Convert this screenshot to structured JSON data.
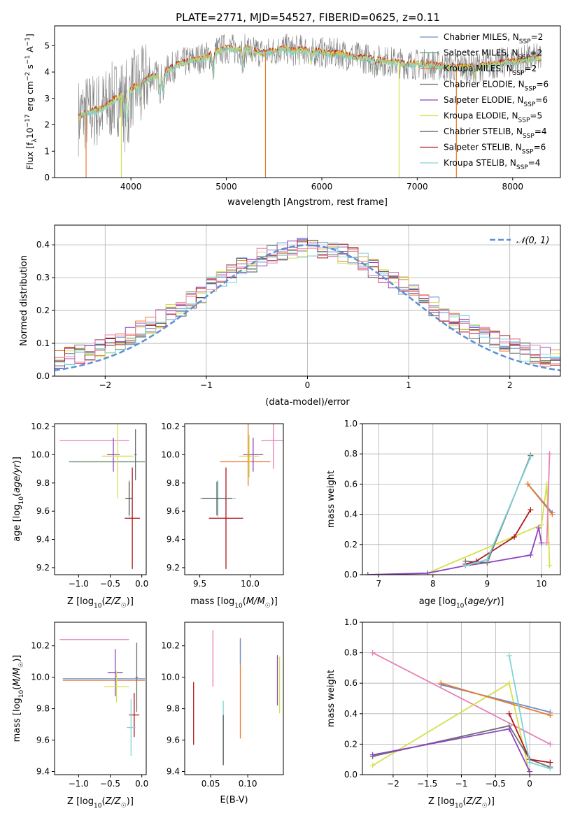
{
  "figure": {
    "title": "PLATE=2771, MJD=54527, FIBERID=0625, z=0.11"
  },
  "colors": {
    "Chabrier MILES": "#6a8fd0",
    "Salpeter MILES": "#5a9a8a",
    "Kroupa MILES": "#e87a2a",
    "Chabrier ELODIE": "#707070",
    "Salpeter ELODIE": "#8e44c0",
    "Kroupa ELODIE": "#d4e04a",
    "Chabrier STELIB": "#555555",
    "Salpeter STELIB": "#b0161b",
    "Kroupa STELIB": "#7fd4d8",
    "pink": "#e87fb8",
    "normal_line": "#5b8fd6"
  },
  "chart_data": [
    {
      "id": "spectrum",
      "type": "line",
      "xlabel": "wavelength [Angstrom, rest frame]",
      "ylabel": "Flux [fλ10⁻¹⁷ erg cm⁻² s⁻¹ A⁻¹]",
      "xlim": [
        3200,
        8500
      ],
      "ylim": [
        0,
        5.75
      ],
      "xticks": [
        4000,
        5000,
        6000,
        7000,
        8000
      ],
      "yticks": [
        0,
        1,
        2,
        3,
        4,
        5
      ],
      "legend_position": "top-right",
      "legend": [
        "Chabrier MILES, N_SSP=2",
        "Salpeter MILES, N_SSP=2",
        "Kroupa MILES, N_SSP=2",
        "Chabrier ELODIE, N_SSP=6",
        "Salpeter ELODIE, N_SSP=6",
        "Kroupa ELODIE, N_SSP=5",
        "Chabrier STELIB, N_SSP=4",
        "Salpeter STELIB, N_SSP=6",
        "Kroupa STELIB, N_SSP=4"
      ],
      "legend_items": [
        {
          "prefix": "Chabrier MILES, N",
          "sub": "SSP",
          "suffix": "=2",
          "color": "#6a8fd0"
        },
        {
          "prefix": "Salpeter MILES, N",
          "sub": "SSP",
          "suffix": "=2",
          "color": "#5a9a8a"
        },
        {
          "prefix": "Kroupa MILES, N",
          "sub": "SSP",
          "suffix": "=2",
          "color": "#e87a2a"
        },
        {
          "prefix": "Chabrier ELODIE, N",
          "sub": "SSP",
          "suffix": "=6",
          "color": "#707070"
        },
        {
          "prefix": "Salpeter ELODIE, N",
          "sub": "SSP",
          "suffix": "=6",
          "color": "#8e44c0"
        },
        {
          "prefix": "Kroupa ELODIE, N",
          "sub": "SSP",
          "suffix": "=5",
          "color": "#d4e04a"
        },
        {
          "prefix": "Chabrier STELIB, N",
          "sub": "SSP",
          "suffix": "=4",
          "color": "#555555"
        },
        {
          "prefix": "Salpeter STELIB, N",
          "sub": "SSP",
          "suffix": "=6",
          "color": "#b0161b"
        },
        {
          "prefix": "Kroupa STELIB, N",
          "sub": "SSP",
          "suffix": "=4",
          "color": "#7fd4d8"
        }
      ],
      "continuum": [
        [
          3450,
          2.3
        ],
        [
          3550,
          2.5
        ],
        [
          3700,
          2.6
        ],
        [
          3800,
          2.9
        ],
        [
          3900,
          3.1
        ],
        [
          4000,
          3.3
        ],
        [
          4100,
          3.6
        ],
        [
          4200,
          3.8
        ],
        [
          4300,
          3.9
        ],
        [
          4400,
          4.1
        ],
        [
          4500,
          4.3
        ],
        [
          4600,
          4.4
        ],
        [
          4700,
          4.5
        ],
        [
          4800,
          4.6
        ],
        [
          4900,
          4.8
        ],
        [
          5000,
          4.9
        ],
        [
          5100,
          4.85
        ],
        [
          5200,
          4.9
        ],
        [
          5300,
          4.8
        ],
        [
          5400,
          4.7
        ],
        [
          5500,
          4.8
        ],
        [
          5600,
          4.9
        ],
        [
          5700,
          4.8
        ],
        [
          5800,
          4.85
        ],
        [
          5900,
          4.8
        ],
        [
          6000,
          4.75
        ],
        [
          6100,
          4.7
        ],
        [
          6200,
          4.7
        ],
        [
          6300,
          4.6
        ],
        [
          6400,
          4.55
        ],
        [
          6500,
          4.5
        ],
        [
          6600,
          4.45
        ],
        [
          6700,
          4.4
        ],
        [
          6800,
          4.35
        ],
        [
          6900,
          4.3
        ],
        [
          7000,
          4.3
        ],
        [
          7100,
          4.3
        ],
        [
          7200,
          4.25
        ],
        [
          7300,
          4.2
        ],
        [
          7400,
          4.2
        ],
        [
          7500,
          4.2
        ],
        [
          7600,
          4.2
        ],
        [
          7700,
          4.25
        ],
        [
          7800,
          4.3
        ],
        [
          7900,
          4.35
        ],
        [
          8000,
          4.4
        ],
        [
          8100,
          4.45
        ],
        [
          8200,
          4.5
        ],
        [
          8300,
          4.5
        ]
      ],
      "absorption_lines": [
        [
          3934,
          2.3
        ],
        [
          3969,
          2.2
        ],
        [
          4102,
          3.0
        ],
        [
          4304,
          3.3
        ],
        [
          4341,
          3.2
        ],
        [
          4861,
          4.0
        ],
        [
          5175,
          4.2
        ],
        [
          5270,
          4.5
        ],
        [
          5890,
          4.4
        ],
        [
          6563,
          4.2
        ],
        [
          7600,
          3.9
        ]
      ],
      "model_drops": [
        {
          "x": 3530,
          "color": "#e87a2a"
        },
        {
          "x": 3900,
          "color": "#d4e04a"
        },
        {
          "x": 5410,
          "color": "#e87a2a"
        },
        {
          "x": 6810,
          "color": "#d4e04a"
        },
        {
          "x": 7410,
          "color": "#e87a2a"
        }
      ]
    },
    {
      "id": "residuals",
      "type": "histogram",
      "xlabel": "(data-model)/error",
      "ylabel": "Normed distribution",
      "xlim": [
        -2.5,
        2.5
      ],
      "ylim": [
        0,
        0.46
      ],
      "xticks": [
        -2,
        -1,
        0,
        1,
        2
      ],
      "yticks": [
        0.0,
        0.1,
        0.2,
        0.3,
        0.4
      ],
      "grid": true,
      "legend_position": "top-right",
      "legend": [
        "𝒩(0, 1)"
      ],
      "bin_width": 0.1,
      "envelope": [
        0.025,
        0.03,
        0.035,
        0.04,
        0.045,
        0.05,
        0.058,
        0.066,
        0.075,
        0.085,
        0.098,
        0.11,
        0.125,
        0.14,
        0.158,
        0.175,
        0.195,
        0.21,
        0.23,
        0.25,
        0.265,
        0.28,
        0.295,
        0.31,
        0.325,
        0.335,
        0.345,
        0.352,
        0.358,
        0.362,
        0.365,
        0.368,
        0.37,
        0.372,
        0.373,
        0.372,
        0.37,
        0.365,
        0.358,
        0.35,
        0.34,
        0.33,
        0.318,
        0.305,
        0.29,
        0.275,
        0.26,
        0.245,
        0.23,
        0.215,
        0.2,
        0.185,
        0.17,
        0.155,
        0.14,
        0.125,
        0.11,
        0.098,
        0.086,
        0.075,
        0.065,
        0.056,
        0.048,
        0.042,
        0.037,
        0.033,
        0.03,
        0.028,
        0.027,
        0.026,
        0.025,
        0.025,
        0.025,
        0.025,
        0.025,
        0.025,
        0.025,
        0.025,
        0.025,
        0.025,
        0.025,
        0.025,
        0.025,
        0.025,
        0.025,
        0.025,
        0.025,
        0.025,
        0.025,
        0.025,
        0.025,
        0.025,
        0.025,
        0.025,
        0.025,
        0.025,
        0.025,
        0.025,
        0.025,
        0.025
      ],
      "series_colors": [
        "#6a8fd0",
        "#e87a2a",
        "#707070",
        "#8e44c0",
        "#d4e04a",
        "#555555",
        "#b0161b",
        "#7fd4d8",
        "#e87fb8"
      ]
    },
    {
      "id": "age-vs-Z",
      "type": "errorbar",
      "xlabel": "Z [log10(Z/Z☉)]",
      "ylabel": "age  [log10(age/yr)]",
      "xlim": [
        -1.38,
        0.07
      ],
      "ylim": [
        9.15,
        10.22
      ],
      "xticks": [
        -1.0,
        -0.5,
        0.0
      ],
      "yticks": [
        9.2,
        9.4,
        9.6,
        9.8,
        10.0,
        10.2
      ],
      "points": [
        {
          "x": -0.75,
          "xerr": 0.55,
          "y": 10.1,
          "yerr": 0.0,
          "color": "#e87fb8"
        },
        {
          "x": -0.55,
          "xerr": 0.6,
          "y": 9.95,
          "yerr": 0.0,
          "color": "#e87a2a"
        },
        {
          "x": -0.55,
          "xerr": 0.6,
          "y": 9.95,
          "yerr": 0.0,
          "color": "#5a9a8a"
        },
        {
          "x": -0.45,
          "xerr": 0.1,
          "y": 10.0,
          "yerr": 0.12,
          "color": "#8e44c0"
        },
        {
          "x": -0.38,
          "xerr": 0.25,
          "y": 9.99,
          "yerr": 0.3,
          "color": "#d4e04a"
        },
        {
          "x": -0.15,
          "xerr": 0.12,
          "y": 9.55,
          "yerr": 0.36,
          "color": "#b0161b"
        },
        {
          "x": -0.2,
          "xerr": 0.06,
          "y": 9.69,
          "yerr": 0.13,
          "color": "#7fd4d8"
        },
        {
          "x": -0.2,
          "xerr": 0.06,
          "y": 9.69,
          "yerr": 0.12,
          "color": "#555555"
        },
        {
          "x": -0.1,
          "xerr": 0.02,
          "y": 10.0,
          "yerr": 0.18,
          "color": "#707070"
        }
      ]
    },
    {
      "id": "age-vs-mass",
      "type": "errorbar",
      "xlabel": "mass [log10(M/M☉)]",
      "ylabel": "",
      "xlim": [
        9.35,
        10.33
      ],
      "ylim": [
        9.15,
        10.22
      ],
      "xticks": [
        9.5,
        10.0
      ],
      "yticks": [
        9.2,
        9.4,
        9.6,
        9.8,
        10.0,
        10.2
      ],
      "points": [
        {
          "x": 10.23,
          "xerr": 0.12,
          "y": 10.1,
          "yerr": 0.2,
          "color": "#e87fb8"
        },
        {
          "x": 9.95,
          "xerr": 0.25,
          "y": 9.95,
          "yerr": 0.0,
          "color": "#e87a2a"
        },
        {
          "x": 10.03,
          "xerr": 0.1,
          "y": 10.0,
          "yerr": 0.12,
          "color": "#8e44c0"
        },
        {
          "x": 9.99,
          "xerr": 0.1,
          "y": 9.99,
          "yerr": 0.15,
          "color": "#d4e04a"
        },
        {
          "x": 9.98,
          "xerr": 0.02,
          "y": 10.0,
          "yerr": 0.22,
          "color": "#e87a2a"
        },
        {
          "x": 9.76,
          "xerr": 0.17,
          "y": 9.55,
          "yerr": 0.36,
          "color": "#b0161b"
        },
        {
          "x": 9.68,
          "xerr": 0.18,
          "y": 9.69,
          "yerr": 0.13,
          "color": "#7fd4d8"
        },
        {
          "x": 9.67,
          "xerr": 0.15,
          "y": 9.69,
          "yerr": 0.12,
          "color": "#555555"
        }
      ]
    },
    {
      "id": "weight-vs-age",
      "type": "line",
      "xlabel": "age  [log10(age/yr)]",
      "ylabel": "mass weight",
      "xlim": [
        6.7,
        10.35
      ],
      "ylim": [
        0,
        1.0
      ],
      "xticks": [
        7,
        8,
        9,
        10
      ],
      "yticks": [
        0.0,
        0.2,
        0.4,
        0.6,
        0.8,
        1.0
      ],
      "grid": true,
      "series": [
        {
          "color": "#d4e04a",
          "x": [
            6.8,
            7.9,
            10.0,
            10.1,
            10.15
          ],
          "y": [
            0.0,
            0.01,
            0.33,
            0.6,
            0.06
          ]
        },
        {
          "color": "#8e44c0",
          "x": [
            6.8,
            7.9,
            8.6,
            9.0,
            9.8,
            9.95,
            10.0
          ],
          "y": [
            0.0,
            0.01,
            0.06,
            0.08,
            0.13,
            0.31,
            0.21
          ]
        },
        {
          "color": "#b0161b",
          "x": [
            8.6,
            8.8,
            9.5,
            9.8
          ],
          "y": [
            0.07,
            0.09,
            0.25,
            0.43
          ]
        },
        {
          "color": "#707070",
          "x": [
            8.6,
            9.0,
            9.8
          ],
          "y": [
            0.09,
            0.08,
            0.79
          ]
        },
        {
          "color": "#7fd4d8",
          "x": [
            8.6,
            9.0,
            9.8
          ],
          "y": [
            0.06,
            0.1,
            0.78
          ]
        },
        {
          "color": "#6a8fd0",
          "x": [
            9.75,
            10.2
          ],
          "y": [
            0.6,
            0.41
          ]
        },
        {
          "color": "#e87a2a",
          "x": [
            9.75,
            10.2
          ],
          "y": [
            0.6,
            0.4
          ]
        },
        {
          "color": "#e87fb8",
          "x": [
            10.1,
            10.15
          ],
          "y": [
            0.21,
            0.8
          ]
        }
      ]
    },
    {
      "id": "mass-vs-Z",
      "type": "errorbar",
      "xlabel": "Z [log10(Z/Z☉)]",
      "ylabel": "mass [log10(M/M☉)]",
      "xlim": [
        -1.38,
        0.07
      ],
      "ylim": [
        9.38,
        10.35
      ],
      "xticks": [
        -1.0,
        -0.5,
        0.0
      ],
      "yticks": [
        9.4,
        9.6,
        9.8,
        10.0,
        10.2
      ],
      "points": [
        {
          "x": -0.75,
          "xerr": 0.55,
          "y": 10.24,
          "yerr": 0.0,
          "color": "#e87fb8"
        },
        {
          "x": -0.6,
          "xerr": 0.65,
          "y": 9.99,
          "yerr": 0.0,
          "color": "#6a8fd0"
        },
        {
          "x": -0.6,
          "xerr": 0.65,
          "y": 9.98,
          "yerr": 0.0,
          "color": "#e87a2a"
        },
        {
          "x": -0.42,
          "xerr": 0.12,
          "y": 10.03,
          "yerr": 0.15,
          "color": "#8e44c0"
        },
        {
          "x": -0.4,
          "xerr": 0.2,
          "y": 9.94,
          "yerr": 0.1,
          "color": "#d4e04a"
        },
        {
          "x": -0.12,
          "xerr": 0.08,
          "y": 9.76,
          "yerr": 0.14,
          "color": "#b0161b"
        },
        {
          "x": -0.17,
          "xerr": 0.07,
          "y": 9.68,
          "yerr": 0.18,
          "color": "#7fd4d8"
        },
        {
          "x": -0.08,
          "xerr": 0.02,
          "y": 10.0,
          "yerr": 0.22,
          "color": "#707070"
        }
      ]
    },
    {
      "id": "mass-vs-EBV",
      "type": "errorbar",
      "xlabel": "E(B-V)",
      "ylabel": "",
      "xlim": [
        0.015,
        0.148
      ],
      "ylim": [
        9.38,
        10.35
      ],
      "xticks": [
        0.05,
        0.1
      ],
      "yticks": [
        9.4,
        9.6,
        9.8,
        10.0,
        10.2
      ],
      "points": [
        {
          "x": 0.027,
          "xerr": 0.0,
          "y": 9.77,
          "yerr": 0.2,
          "color": "#b0161b"
        },
        {
          "x": 0.053,
          "xerr": 0.0,
          "y": 10.12,
          "yerr": 0.18,
          "color": "#e87fb8"
        },
        {
          "x": 0.067,
          "xerr": 0.0,
          "y": 9.65,
          "yerr": 0.2,
          "color": "#7fd4d8"
        },
        {
          "x": 0.067,
          "xerr": 0.0,
          "y": 9.6,
          "yerr": 0.16,
          "color": "#555555"
        },
        {
          "x": 0.09,
          "xerr": 0.0,
          "y": 9.93,
          "yerr": 0.32,
          "color": "#e87a2a"
        },
        {
          "x": 0.09,
          "xerr": 0.0,
          "y": 10.16,
          "yerr": 0.08,
          "color": "#6a8fd0"
        },
        {
          "x": 0.14,
          "xerr": 0.0,
          "y": 9.98,
          "yerr": 0.16,
          "color": "#8e44c0"
        },
        {
          "x": 0.143,
          "xerr": 0.0,
          "y": 9.95,
          "yerr": 0.18,
          "color": "#d4e04a"
        }
      ]
    },
    {
      "id": "weight-vs-Z",
      "type": "line",
      "xlabel": "Z [log10(Z/Z☉)]",
      "ylabel": "mass weight",
      "xlim": [
        -2.45,
        0.45
      ],
      "ylim": [
        0,
        1.0
      ],
      "xticks": [
        -2.0,
        -1.5,
        -1.0,
        -0.5,
        0.0
      ],
      "yticks": [
        0.0,
        0.2,
        0.4,
        0.6,
        0.8,
        1.0
      ],
      "grid": true,
      "series": [
        {
          "color": "#e87fb8",
          "x": [
            -2.3,
            0.3
          ],
          "y": [
            0.8,
            0.2
          ]
        },
        {
          "color": "#d4e04a",
          "x": [
            -2.3,
            -0.3,
            0.0
          ],
          "y": [
            0.06,
            0.6,
            0.0
          ]
        },
        {
          "color": "#707070",
          "x": [
            -2.3,
            -0.3,
            0.0,
            0.3
          ],
          "y": [
            0.12,
            0.32,
            0.1,
            0.05
          ]
        },
        {
          "color": "#8e44c0",
          "x": [
            -2.3,
            -0.3,
            0.0
          ],
          "y": [
            0.13,
            0.3,
            0.02
          ]
        },
        {
          "color": "#b0161b",
          "x": [
            -0.3,
            0.0,
            0.3
          ],
          "y": [
            0.4,
            0.1,
            0.08
          ]
        },
        {
          "color": "#6a8fd0",
          "x": [
            -1.3,
            0.3
          ],
          "y": [
            0.59,
            0.41
          ]
        },
        {
          "color": "#e87a2a",
          "x": [
            -1.3,
            0.3
          ],
          "y": [
            0.6,
            0.39
          ]
        },
        {
          "color": "#7fd4d8",
          "x": [
            -0.3,
            0.0,
            0.3
          ],
          "y": [
            0.78,
            0.08,
            0.04
          ]
        }
      ]
    }
  ]
}
